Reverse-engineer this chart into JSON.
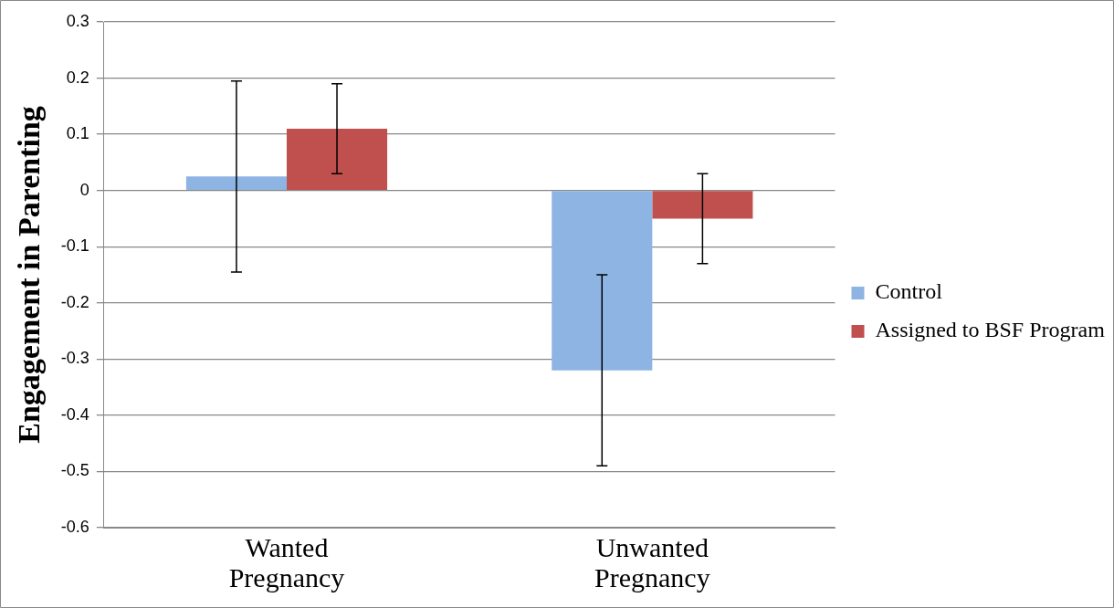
{
  "chart_data": {
    "type": "bar",
    "ylabel": "Engagement in Parenting",
    "categories": [
      "Wanted Pregnancy",
      "Unwanted Pregnancy"
    ],
    "series": [
      {
        "name": "Control",
        "color": "#8eb4e3",
        "values": [
          0.025,
          -0.32
        ],
        "errors": [
          0.17,
          0.17
        ]
      },
      {
        "name": "Assigned to BSF Program",
        "color": "#c0504d",
        "values": [
          0.11,
          -0.05
        ],
        "errors": [
          0.08,
          0.08
        ]
      }
    ],
    "ylim": [
      -0.6,
      0.3
    ],
    "yticks": [
      -0.6,
      -0.5,
      -0.4,
      -0.3,
      -0.2,
      -0.1,
      0,
      0.1,
      0.2,
      0.3
    ],
    "grid": "y",
    "legend": "right"
  }
}
